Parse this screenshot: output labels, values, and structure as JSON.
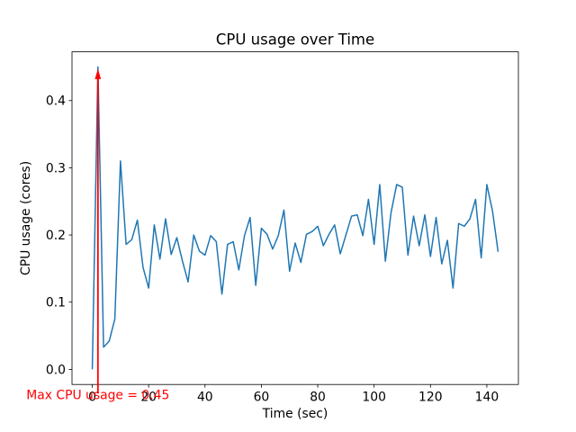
{
  "chart_data": {
    "type": "line",
    "title": "CPU usage over Time",
    "xlabel": "Time (sec)",
    "ylabel": "CPU usage (cores)",
    "grid": false,
    "legend": "none",
    "line_color": "#1f77b4",
    "line_width": 1.5,
    "axis_color": "#000000",
    "xlim": [
      -7.2,
      151.2
    ],
    "ylim": [
      -0.0225,
      0.4725
    ],
    "xticks": [
      0,
      20,
      40,
      60,
      80,
      100,
      120,
      140
    ],
    "xtick_labels": [
      "0",
      "20",
      "40",
      "60",
      "80",
      "100",
      "120",
      "140"
    ],
    "yticks": [
      0.0,
      0.1,
      0.2,
      0.3,
      0.4
    ],
    "ytick_labels": [
      "0.0",
      "0.1",
      "0.2",
      "0.3",
      "0.4"
    ],
    "x": [
      0,
      2,
      4,
      6,
      8,
      10,
      12,
      14,
      16,
      18,
      20,
      22,
      24,
      26,
      28,
      30,
      32,
      34,
      36,
      38,
      40,
      42,
      44,
      46,
      48,
      50,
      52,
      54,
      56,
      58,
      60,
      62,
      64,
      66,
      68,
      70,
      72,
      74,
      76,
      78,
      80,
      82,
      84,
      86,
      88,
      90,
      92,
      94,
      96,
      98,
      100,
      102,
      104,
      106,
      108,
      110,
      112,
      114,
      116,
      118,
      120,
      122,
      124,
      126,
      128,
      130,
      132,
      134,
      136,
      138,
      140,
      142,
      144
    ],
    "y": [
      0.0,
      0.45,
      0.033,
      0.042,
      0.075,
      0.31,
      0.186,
      0.193,
      0.222,
      0.152,
      0.121,
      0.215,
      0.164,
      0.224,
      0.171,
      0.196,
      0.161,
      0.13,
      0.2,
      0.176,
      0.17,
      0.199,
      0.19,
      0.112,
      0.186,
      0.19,
      0.148,
      0.199,
      0.226,
      0.125,
      0.21,
      0.201,
      0.179,
      0.199,
      0.237,
      0.146,
      0.188,
      0.159,
      0.201,
      0.205,
      0.213,
      0.184,
      0.201,
      0.215,
      0.172,
      0.2,
      0.228,
      0.23,
      0.199,
      0.253,
      0.186,
      0.275,
      0.161,
      0.233,
      0.275,
      0.271,
      0.17,
      0.228,
      0.184,
      0.23,
      0.168,
      0.226,
      0.157,
      0.192,
      0.121,
      0.217,
      0.213,
      0.224,
      0.253,
      0.166,
      0.275,
      0.236,
      0.175
    ],
    "annotation": {
      "text": "Max CPU usage = 0.45",
      "color": "#ff0000",
      "max_value": 0.45,
      "arrow_x": 2,
      "arrow_tip_y": 0.447,
      "arrow_tail_y": -0.036,
      "text_x": 2,
      "text_y": -0.044
    }
  }
}
